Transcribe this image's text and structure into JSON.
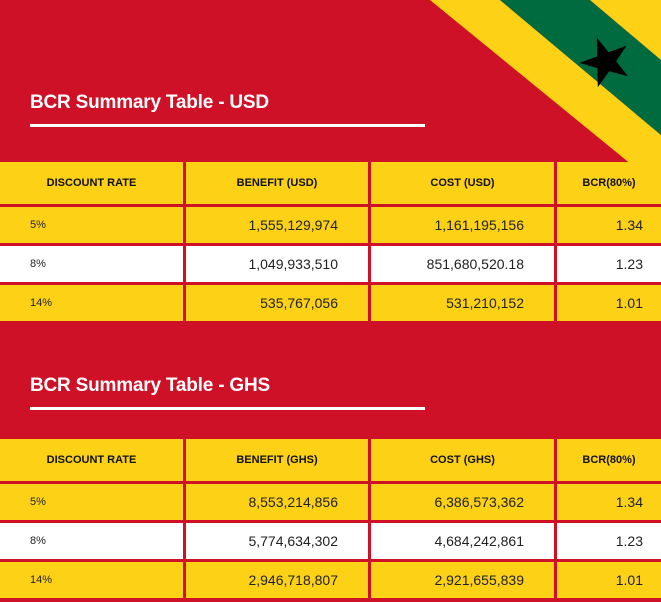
{
  "colors": {
    "red": "#ce1126",
    "yellow": "#fcd116",
    "green": "#006b3f",
    "black": "#000000"
  },
  "decoration": {
    "icon": "ghana-flag-corner-icon"
  },
  "usd": {
    "title": "BCR Summary Table - USD",
    "headers": [
      "DISCOUNT RATE",
      "BENEFIT (USD)",
      "COST (USD)",
      "BCR(80%)"
    ],
    "rows": [
      {
        "rate": "5%",
        "benefit": "1,555,129,974",
        "cost": "1,161,195,156",
        "bcr": "1.34"
      },
      {
        "rate": "8%",
        "benefit": "1,049,933,510",
        "cost": "851,680,520.18",
        "bcr": "1.23"
      },
      {
        "rate": "14%",
        "benefit": "535,767,056",
        "cost": "531,210,152",
        "bcr": "1.01"
      }
    ]
  },
  "ghs": {
    "title": "BCR Summary Table - GHS",
    "headers": [
      "DISCOUNT RATE",
      "BENEFIT (GHS)",
      "COST (GHS)",
      "BCR(80%)"
    ],
    "rows": [
      {
        "rate": "5%",
        "benefit": "8,553,214,856",
        "cost": "6,386,573,362",
        "bcr": "1.34"
      },
      {
        "rate": "8%",
        "benefit": "5,774,634,302",
        "cost": "4,684,242,861",
        "bcr": "1.23"
      },
      {
        "rate": "14%",
        "benefit": "2,946,718,807",
        "cost": "2,921,655,839",
        "bcr": "1.01"
      }
    ]
  }
}
